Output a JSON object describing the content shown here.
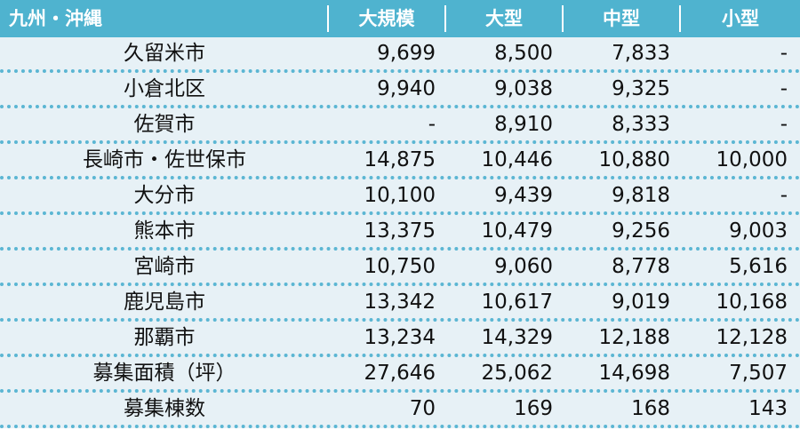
{
  "chart_data": {
    "type": "table",
    "columns": [
      "九州・沖縄",
      "大規模",
      "大型",
      "中型",
      "小型"
    ],
    "rows": [
      {
        "label": "久留米市",
        "values": [
          "9,699",
          "8,500",
          "7,833",
          "-"
        ]
      },
      {
        "label": "小倉北区",
        "values": [
          "9,940",
          "9,038",
          "9,325",
          "-"
        ]
      },
      {
        "label": "佐賀市",
        "values": [
          "-",
          "8,910",
          "8,333",
          "-"
        ]
      },
      {
        "label": "長崎市・佐世保市",
        "values": [
          "14,875",
          "10,446",
          "10,880",
          "10,000"
        ]
      },
      {
        "label": "大分市",
        "values": [
          "10,100",
          "9,439",
          "9,818",
          "-"
        ]
      },
      {
        "label": "熊本市",
        "values": [
          "13,375",
          "10,479",
          "9,256",
          "9,003"
        ]
      },
      {
        "label": "宮崎市",
        "values": [
          "10,750",
          "9,060",
          "8,778",
          "5,616"
        ]
      },
      {
        "label": "鹿児島市",
        "values": [
          "13,342",
          "10,617",
          "9,019",
          "10,168"
        ]
      },
      {
        "label": "那覇市",
        "values": [
          "13,234",
          "14,329",
          "12,188",
          "12,128"
        ]
      },
      {
        "label": "募集面積（坪）",
        "values": [
          "27,646",
          "25,062",
          "14,698",
          "7,507"
        ]
      },
      {
        "label": "募集棟数",
        "values": [
          "70",
          "169",
          "168",
          "143"
        ]
      }
    ]
  },
  "colors": {
    "header_bg": "#4fb3cf",
    "row_bg": "#e7f1f6",
    "separator": "#5bb6d3",
    "header_text": "#ffffff"
  }
}
